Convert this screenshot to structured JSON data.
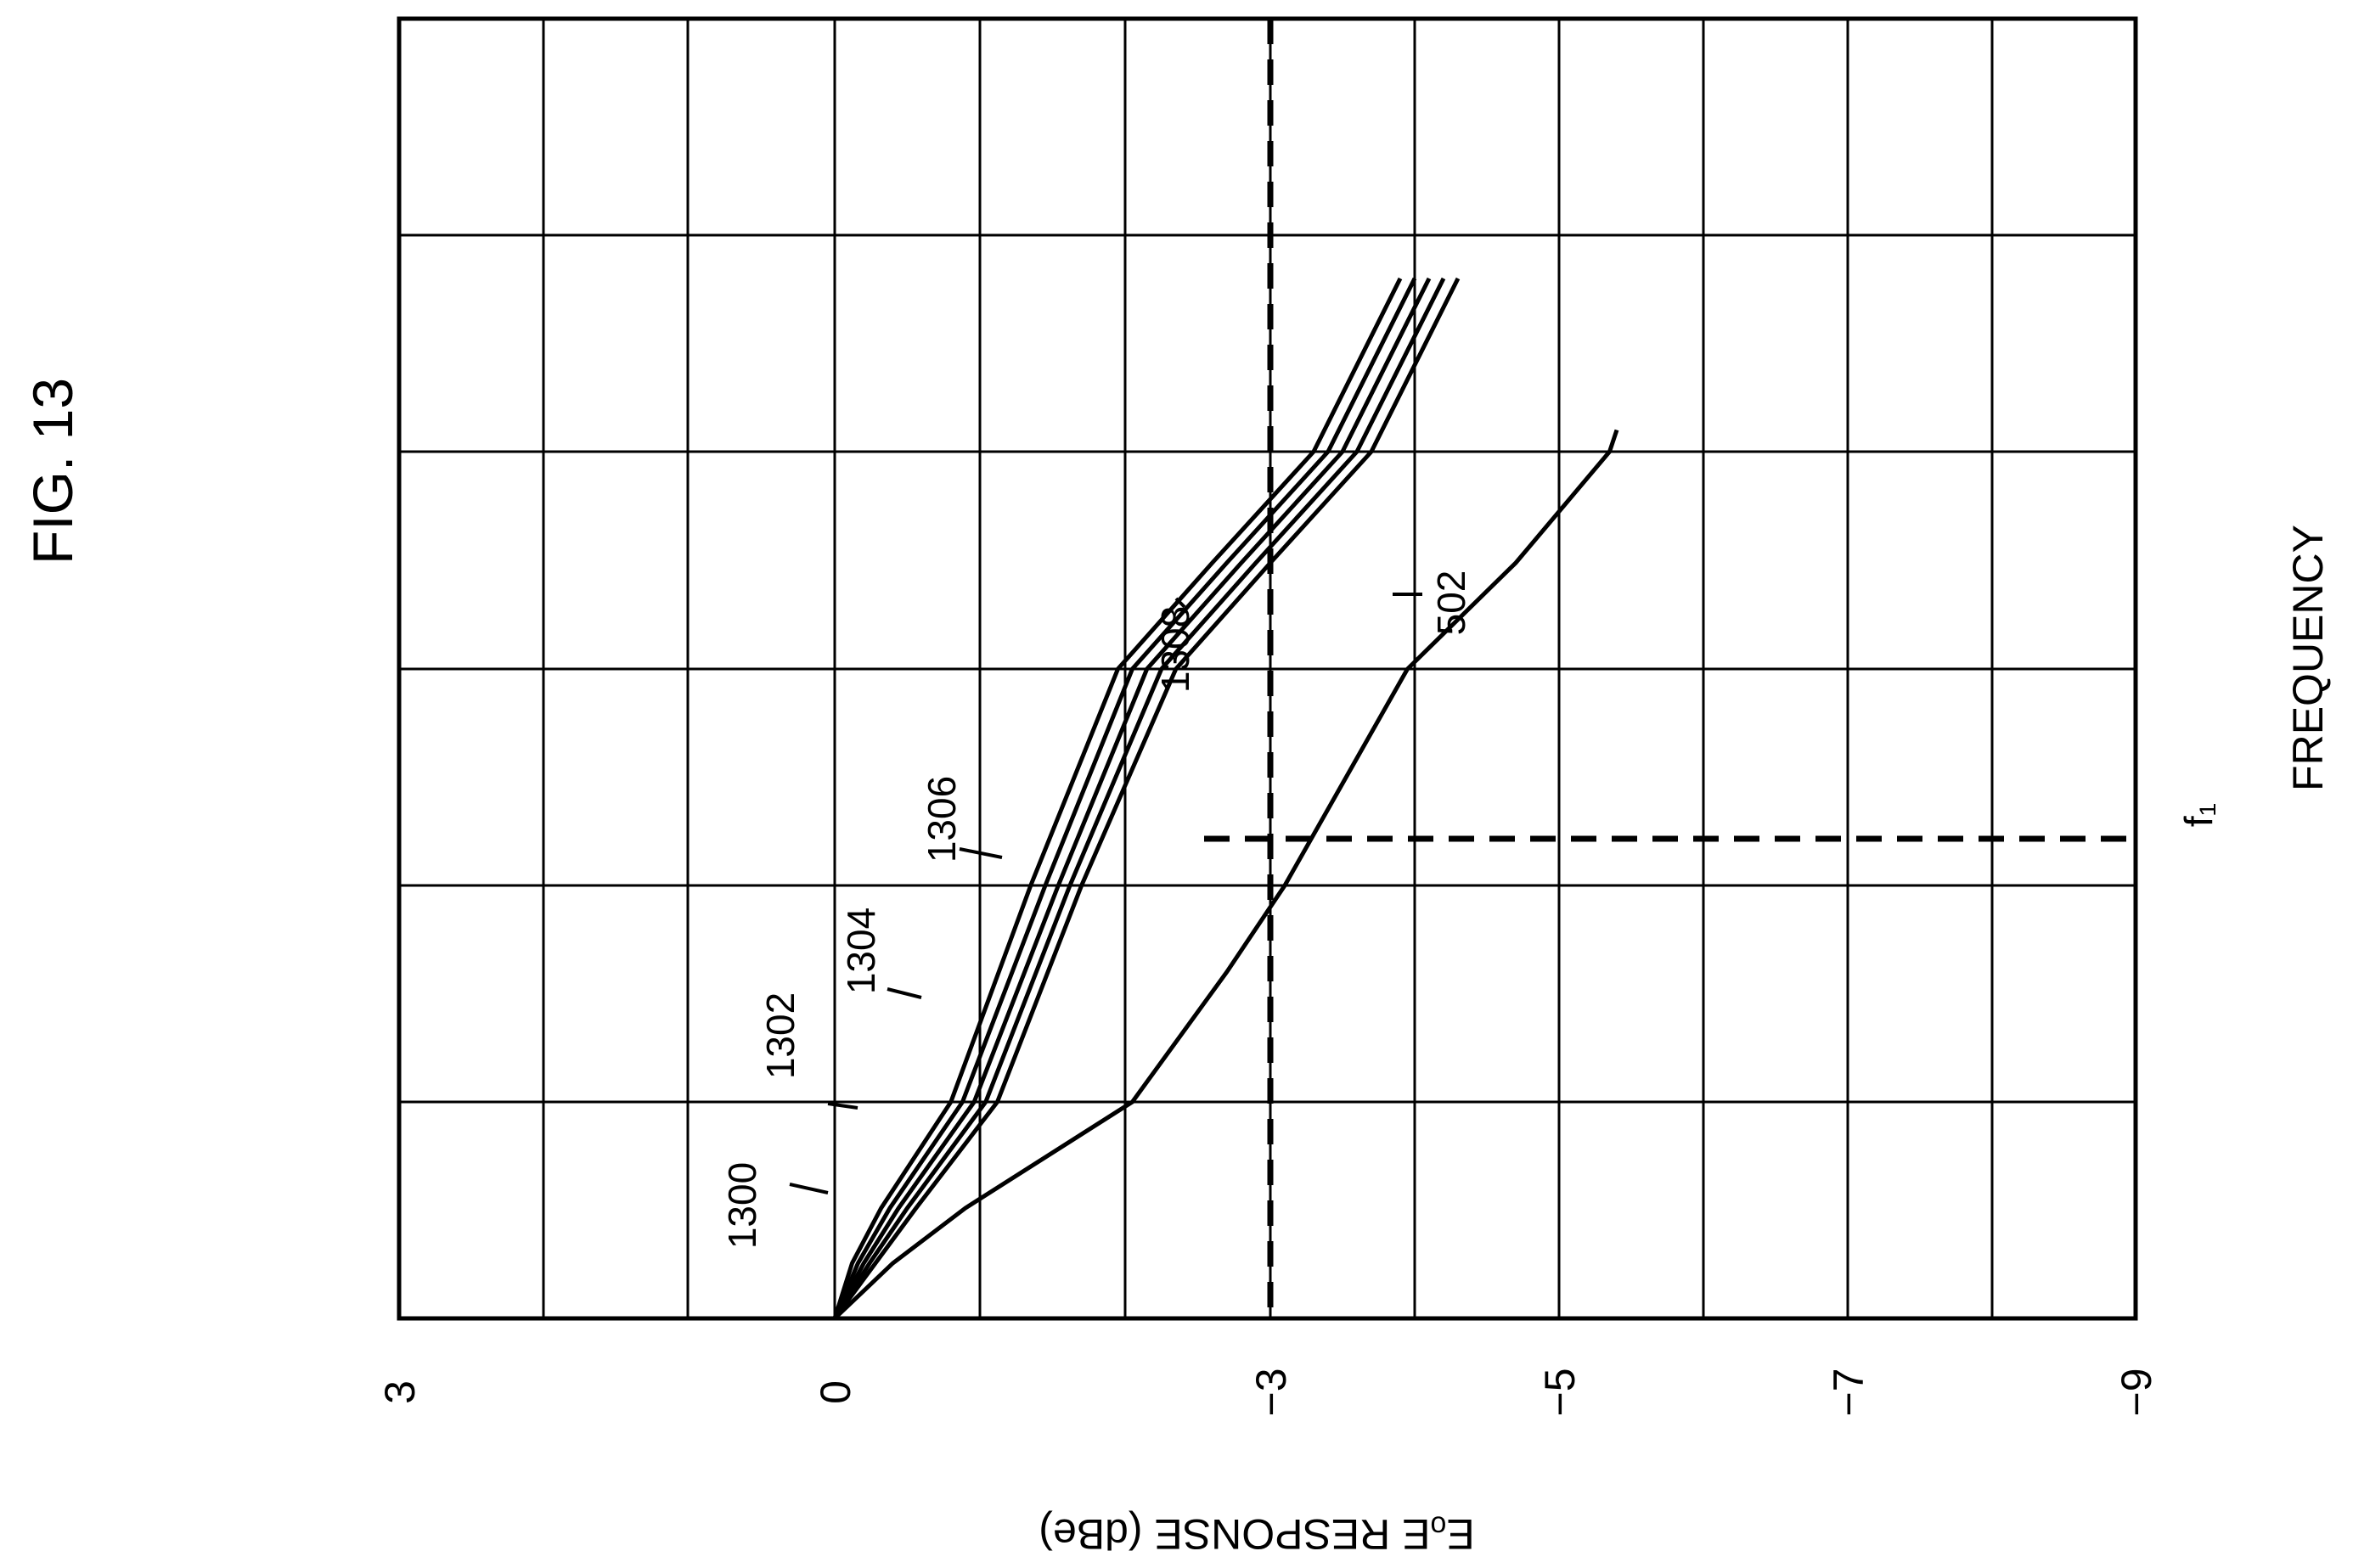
{
  "figure": {
    "title": "FIG. 13"
  },
  "chart_data": {
    "type": "line",
    "title": "FIG. 13",
    "xlabel": "FREQUENCY",
    "ylabel": "EₒE RESPONSE (dBe)",
    "ylim": [
      -9,
      3
    ],
    "y_tick_labels": [
      "3",
      "0",
      "−3",
      "−5",
      "−7",
      "−9"
    ],
    "grid": true,
    "reference_lines": {
      "horizontal": {
        "y": -3
      },
      "vertical": {
        "label": "f₁"
      }
    },
    "series": [
      {
        "name": "1300",
        "x": [
          0,
          0.5,
          1,
          2,
          3,
          4,
          5,
          6,
          6.8
        ],
        "y": [
          0,
          -0.12,
          -0.32,
          -0.8,
          -1.35,
          -1.95,
          -2.6,
          -3.3,
          -3.9
        ]
      },
      {
        "name": "1302",
        "x": [
          0,
          0.5,
          1,
          2,
          3,
          4,
          5,
          6,
          6.8
        ],
        "y": [
          0,
          -0.16,
          -0.38,
          -0.88,
          -1.45,
          -2.05,
          -2.7,
          -3.4,
          -4.0
        ]
      },
      {
        "name": "1304",
        "x": [
          0,
          0.5,
          1,
          2,
          3,
          4,
          5,
          6,
          6.8
        ],
        "y": [
          0,
          -0.2,
          -0.44,
          -0.96,
          -1.54,
          -2.15,
          -2.8,
          -3.5,
          -4.1
        ]
      },
      {
        "name": "1306",
        "x": [
          0,
          0.5,
          1,
          2,
          3,
          4,
          5,
          6,
          6.8
        ],
        "y": [
          0,
          -0.24,
          -0.5,
          -1.04,
          -1.62,
          -2.25,
          -2.9,
          -3.6,
          -4.2
        ]
      },
      {
        "name": "1308",
        "x": [
          0,
          0.5,
          1,
          2,
          3,
          4,
          5,
          6,
          6.8
        ],
        "y": [
          0,
          -0.28,
          -0.56,
          -1.12,
          -1.7,
          -2.35,
          -3.0,
          -3.7,
          -4.3
        ]
      },
      {
        "name": "502",
        "x": [
          0,
          0.5,
          1,
          2,
          2.6,
          3,
          4,
          5,
          6,
          6.1
        ],
        "y": [
          0,
          -0.4,
          -0.9,
          -2.05,
          -2.7,
          -3.1,
          -3.95,
          -4.7,
          -5.35,
          -5.4
        ]
      }
    ]
  }
}
